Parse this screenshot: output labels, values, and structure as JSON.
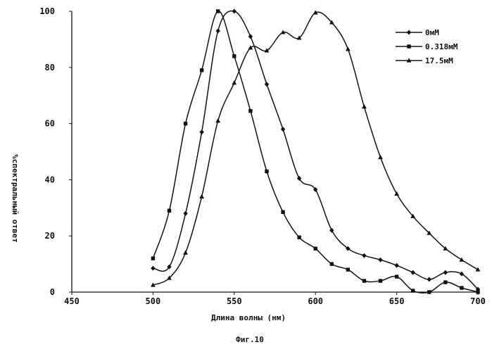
{
  "chart_data": {
    "type": "line",
    "xlabel": "Длина волны (нм)",
    "ylabel": "%спектральный ответ",
    "caption": "Фиг.10",
    "xlim": [
      450,
      700
    ],
    "ylim": [
      0,
      100
    ],
    "x_ticks": [
      450,
      500,
      550,
      600,
      650,
      700
    ],
    "y_ticks": [
      0,
      20,
      40,
      60,
      80,
      100
    ],
    "legend_position": "top-right",
    "grid": false,
    "series": [
      {
        "name": "0мМ",
        "marker": "diamond",
        "points": [
          [
            500,
            8.5
          ],
          [
            510,
            9
          ],
          [
            520,
            28
          ],
          [
            530,
            57
          ],
          [
            540,
            93
          ],
          [
            550,
            100
          ],
          [
            560,
            91
          ],
          [
            570,
            74
          ],
          [
            580,
            58
          ],
          [
            590,
            40.5
          ],
          [
            600,
            36.5
          ],
          [
            610,
            22
          ],
          [
            620,
            15.5
          ],
          [
            630,
            13
          ],
          [
            640,
            11.5
          ],
          [
            650,
            9.5
          ],
          [
            660,
            7
          ],
          [
            670,
            4.5
          ],
          [
            680,
            7
          ],
          [
            690,
            6.5
          ],
          [
            700,
            1
          ]
        ]
      },
      {
        "name": "0.318мМ",
        "marker": "square",
        "points": [
          [
            500,
            12
          ],
          [
            510,
            29
          ],
          [
            520,
            60
          ],
          [
            530,
            79
          ],
          [
            540,
            100
          ],
          [
            550,
            84
          ],
          [
            560,
            64.5
          ],
          [
            570,
            43
          ],
          [
            580,
            28.5
          ],
          [
            590,
            19.5
          ],
          [
            600,
            15.5
          ],
          [
            610,
            10
          ],
          [
            620,
            8
          ],
          [
            630,
            4
          ],
          [
            640,
            4
          ],
          [
            650,
            5.5
          ],
          [
            660,
            0.5
          ],
          [
            670,
            0
          ],
          [
            680,
            3.5
          ],
          [
            690,
            1.5
          ],
          [
            700,
            0
          ]
        ]
      },
      {
        "name": "17.5мМ",
        "marker": "triangle",
        "points": [
          [
            500,
            2.5
          ],
          [
            510,
            5
          ],
          [
            520,
            14
          ],
          [
            530,
            34
          ],
          [
            540,
            61
          ],
          [
            550,
            74.5
          ],
          [
            560,
            87
          ],
          [
            570,
            86
          ],
          [
            580,
            92.5
          ],
          [
            590,
            90.5
          ],
          [
            600,
            99.5
          ],
          [
            610,
            96
          ],
          [
            620,
            86.5
          ],
          [
            630,
            66
          ],
          [
            640,
            48
          ],
          [
            650,
            35
          ],
          [
            660,
            27
          ],
          [
            670,
            21
          ],
          [
            680,
            15.5
          ],
          [
            690,
            11.5
          ],
          [
            700,
            8
          ]
        ]
      }
    ]
  }
}
